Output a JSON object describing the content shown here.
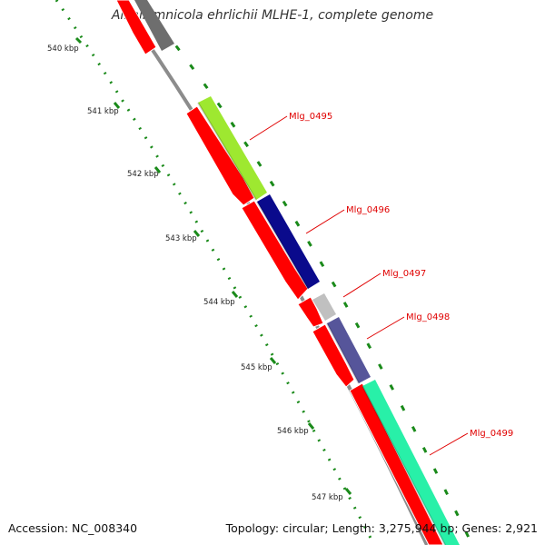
{
  "title": "Alkalilimnicola ehrlichii MLHE-1, complete genome",
  "accession_label": "Accession: NC_008340",
  "summary_label": "Topology: circular; Length: 3,275,944 bp; Genes: 2,921",
  "scale_labels": [
    "540 kbp",
    "541 kbp",
    "542 kbp",
    "543 kbp",
    "544 kbp",
    "545 kbp",
    "546 kbp",
    "547 kbp"
  ],
  "gene_labels": [
    "Mlg_0495",
    "Mlg_0496",
    "Mlg_0497",
    "Mlg_0498",
    "Mlg_0499"
  ],
  "colors": {
    "cds": "#ff0000",
    "backbone": "#8c8c8c",
    "tick": "#1a8a1a",
    "mlg_0495": "#9ee830",
    "mlg_0496": "#0a0a8c",
    "mlg_0497": "#c0c0c0",
    "mlg_0498": "#56559a",
    "mlg_0499": "#28f0a8",
    "upstream_gene": "#6e6e6e"
  }
}
